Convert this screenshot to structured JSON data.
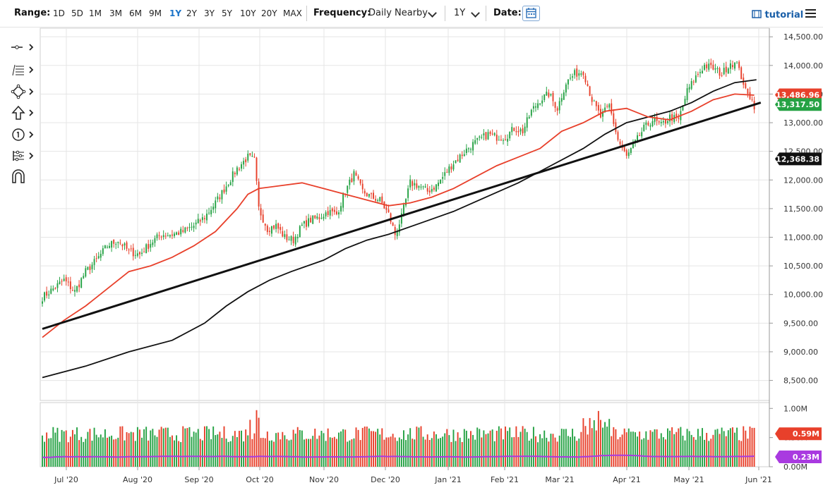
{
  "toolbar": {
    "range_label": "Range:",
    "ranges": [
      "1D",
      "5D",
      "1M",
      "3M",
      "6M",
      "9M",
      "1Y",
      "2Y",
      "3Y",
      "5Y",
      "10Y",
      "20Y",
      "MAX"
    ],
    "active_range": "1Y",
    "frequency_label": "Frequency:",
    "frequency_value": "Daily Nearby",
    "period_value": "1Y",
    "date_label": "Date:",
    "calendar_icon": "calendar-icon",
    "tutorial_label": "tutorial",
    "tutorial_icon": "film-icon",
    "menu_icon": "hamburger-menu-icon"
  },
  "tools": [
    "line-tool-icon",
    "fibonacci-tool-icon",
    "shape-tool-icon",
    "arrow-tool-icon",
    "annotation-number-icon",
    "pattern-tool-icon",
    "magnet-icon"
  ],
  "chart_data": {
    "type": "candlestick",
    "x_labels": [
      "Jul '20",
      "Aug '20",
      "Sep '20",
      "Oct '20",
      "Nov '20",
      "Dec '20",
      "Jan '21",
      "Feb '21",
      "Mar '21",
      "Apr '21",
      "May '21",
      "Jun '21"
    ],
    "price_axis": {
      "ticks": [
        "14,500.00",
        "14,000.00",
        "13,500.00",
        "13,000.00",
        "12,500.00",
        "12,000.00",
        "11,500.00",
        "11,000.00",
        "10,500.00",
        "10,000.00",
        "9,500.00",
        "9,000.00",
        "8,500.00"
      ],
      "range": [
        8150,
        14650
      ]
    },
    "volume_axis": {
      "ticks": [
        "1.00M",
        "0.50M",
        "0.00M"
      ],
      "range": [
        0,
        1.1
      ]
    },
    "price_points": [
      [
        0,
        9950
      ],
      [
        5,
        10100
      ],
      [
        10,
        10250
      ],
      [
        15,
        10050
      ],
      [
        20,
        10400
      ],
      [
        25,
        10600
      ],
      [
        30,
        10850
      ],
      [
        35,
        10950
      ],
      [
        40,
        10750
      ],
      [
        45,
        10700
      ],
      [
        50,
        10900
      ],
      [
        55,
        11050
      ],
      [
        60,
        11050
      ],
      [
        65,
        11100
      ],
      [
        70,
        11200
      ],
      [
        75,
        11350
      ],
      [
        80,
        11600
      ],
      [
        85,
        11900
      ],
      [
        90,
        12200
      ],
      [
        95,
        12400
      ],
      [
        98,
        12350
      ],
      [
        100,
        11500
      ],
      [
        104,
        11150
      ],
      [
        108,
        11200
      ],
      [
        112,
        11000
      ],
      [
        116,
        10950
      ],
      [
        120,
        11200
      ],
      [
        124,
        11300
      ],
      [
        128,
        11350
      ],
      [
        132,
        11450
      ],
      [
        136,
        11400
      ],
      [
        140,
        11800
      ],
      [
        144,
        12100
      ],
      [
        148,
        11800
      ],
      [
        152,
        11700
      ],
      [
        156,
        11650
      ],
      [
        160,
        11400
      ],
      [
        163,
        11050
      ],
      [
        166,
        11350
      ],
      [
        170,
        11950
      ],
      [
        174,
        11900
      ],
      [
        178,
        11800
      ],
      [
        182,
        11900
      ],
      [
        186,
        12100
      ],
      [
        190,
        12300
      ],
      [
        194,
        12450
      ],
      [
        198,
        12600
      ],
      [
        202,
        12700
      ],
      [
        206,
        12800
      ],
      [
        210,
        12750
      ],
      [
        214,
        12750
      ],
      [
        218,
        12900
      ],
      [
        222,
        12850
      ],
      [
        226,
        13200
      ],
      [
        230,
        13400
      ],
      [
        234,
        13500
      ],
      [
        238,
        13250
      ],
      [
        242,
        13700
      ],
      [
        246,
        13850
      ],
      [
        250,
        13900
      ],
      [
        254,
        13400
      ],
      [
        258,
        13100
      ],
      [
        262,
        13300
      ],
      [
        266,
        12700
      ],
      [
        270,
        12400
      ],
      [
        274,
        12650
      ],
      [
        278,
        12900
      ],
      [
        282,
        13050
      ],
      [
        286,
        12950
      ],
      [
        290,
        13100
      ],
      [
        294,
        13050
      ],
      [
        298,
        13550
      ],
      [
        302,
        13800
      ],
      [
        306,
        14000
      ],
      [
        310,
        13950
      ],
      [
        314,
        13850
      ],
      [
        318,
        14050
      ],
      [
        322,
        14000
      ],
      [
        324,
        13600
      ],
      [
        326,
        13550
      ],
      [
        329,
        13300
      ]
    ],
    "ma_50": [
      [
        0,
        9250
      ],
      [
        10,
        9550
      ],
      [
        20,
        9800
      ],
      [
        30,
        10100
      ],
      [
        40,
        10400
      ],
      [
        50,
        10500
      ],
      [
        60,
        10650
      ],
      [
        70,
        10850
      ],
      [
        80,
        11100
      ],
      [
        90,
        11500
      ],
      [
        95,
        11750
      ],
      [
        100,
        11850
      ],
      [
        110,
        11900
      ],
      [
        120,
        11950
      ],
      [
        130,
        11850
      ],
      [
        140,
        11750
      ],
      [
        150,
        11650
      ],
      [
        160,
        11550
      ],
      [
        170,
        11600
      ],
      [
        180,
        11700
      ],
      [
        190,
        11850
      ],
      [
        200,
        12050
      ],
      [
        210,
        12250
      ],
      [
        220,
        12400
      ],
      [
        230,
        12550
      ],
      [
        240,
        12850
      ],
      [
        250,
        13000
      ],
      [
        260,
        13200
      ],
      [
        270,
        13250
      ],
      [
        280,
        13100
      ],
      [
        290,
        13050
      ],
      [
        300,
        13200
      ],
      [
        310,
        13400
      ],
      [
        320,
        13500
      ],
      [
        329,
        13480
      ]
    ],
    "ma_200": [
      [
        0,
        8550
      ],
      [
        20,
        8750
      ],
      [
        40,
        9000
      ],
      [
        60,
        9200
      ],
      [
        75,
        9500
      ],
      [
        85,
        9800
      ],
      [
        95,
        10050
      ],
      [
        105,
        10250
      ],
      [
        115,
        10400
      ],
      [
        130,
        10600
      ],
      [
        140,
        10800
      ],
      [
        150,
        10950
      ],
      [
        160,
        11050
      ],
      [
        175,
        11250
      ],
      [
        190,
        11450
      ],
      [
        205,
        11700
      ],
      [
        220,
        11950
      ],
      [
        235,
        12250
      ],
      [
        250,
        12550
      ],
      [
        260,
        12800
      ],
      [
        270,
        13000
      ],
      [
        280,
        13100
      ],
      [
        290,
        13200
      ],
      [
        300,
        13350
      ],
      [
        310,
        13550
      ],
      [
        320,
        13700
      ],
      [
        330,
        13750
      ]
    ],
    "trend_line": [
      [
        0,
        9400
      ],
      [
        332,
        13350
      ]
    ],
    "badges": [
      {
        "label": "13,486.96",
        "color": "#e8402b"
      },
      {
        "label": "13,317.50",
        "color": "#25a244"
      },
      {
        "label": "12,368.38",
        "color": "#111111"
      },
      {
        "label": "0.59M",
        "color": "#e8402b"
      },
      {
        "label": "0.23M",
        "color": "#a93ae0"
      }
    ],
    "colors": {
      "up": "#25a244",
      "down": "#e8402b",
      "ma_short": "#e8402b",
      "ma_long": "#111111",
      "volume_ma": "#a93ae0",
      "grid": "#e5e5e5"
    }
  }
}
